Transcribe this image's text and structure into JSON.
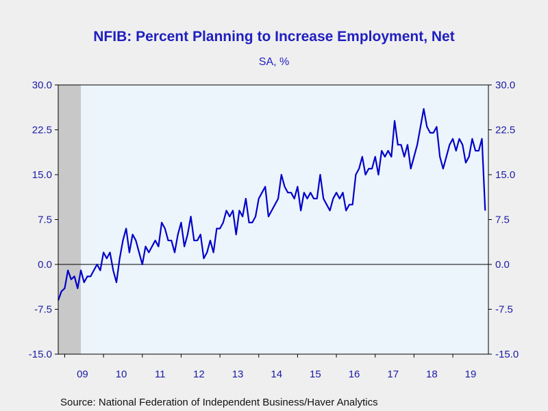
{
  "chart_data": {
    "type": "line",
    "title": "NFIB: Percent Planning to Increase Employment, Net",
    "subtitle": "SA, %",
    "source": "Source:  National Federation of Independent Business/Haver Analytics",
    "ylim": [
      -15,
      30
    ],
    "yticks": [
      "30.0",
      "22.5",
      "15.0",
      "7.5",
      "0.0",
      "-7.5",
      "-15.0"
    ],
    "ytick_values": [
      30,
      22.5,
      15,
      7.5,
      0,
      -7.5,
      -15
    ],
    "xlim": [
      "2008-11",
      "2019-12"
    ],
    "xtick_labels": [
      "09",
      "10",
      "11",
      "12",
      "13",
      "14",
      "15",
      "16",
      "17",
      "18",
      "19"
    ],
    "grid": false,
    "zero_line": true,
    "colors": {
      "line": "#0000c8",
      "plot_bg": "#ecf4fc",
      "shade": "#c8c8c8",
      "text": "#1f1fbf"
    },
    "shaded_regions": [
      [
        "2008-11",
        "2009-06"
      ]
    ],
    "series": [
      {
        "start": "2008-11",
        "values": [
          -6,
          -4.5,
          -4,
          -1,
          -2.5,
          -2,
          -4,
          -1,
          -3,
          -2,
          -2,
          -1,
          0,
          -1,
          2,
          1,
          2,
          -1,
          -3,
          1,
          4,
          6,
          2,
          5,
          4,
          2,
          0,
          3,
          2,
          3,
          4,
          3,
          7,
          6,
          4,
          4,
          2,
          5,
          7,
          3,
          5,
          8,
          4,
          4,
          5,
          1,
          2,
          4,
          2,
          6,
          6,
          7,
          9,
          8,
          9,
          5,
          9,
          8,
          11,
          7,
          7,
          8,
          11,
          12,
          13,
          8,
          9,
          10,
          11,
          15,
          13,
          12,
          12,
          11,
          13,
          9,
          12,
          11,
          12,
          11,
          11,
          15,
          11,
          10,
          9,
          11,
          12,
          11,
          12,
          9,
          10,
          10,
          15,
          16,
          18,
          15,
          16,
          16,
          18,
          15,
          19,
          18,
          19,
          18,
          24,
          20,
          20,
          18,
          20,
          16,
          18,
          20,
          23,
          26,
          23,
          22,
          22,
          23,
          18,
          16,
          18,
          20,
          21,
          19,
          21,
          20,
          17,
          18,
          21,
          19,
          19,
          21,
          9
        ]
      }
    ]
  }
}
